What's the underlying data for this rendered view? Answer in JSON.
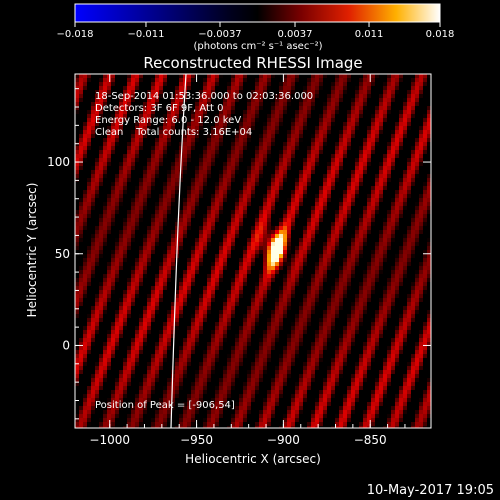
{
  "chart_data": {
    "type": "heatmap",
    "title": "Reconstructed RHESSI Image",
    "xlabel": "Heliocentric X (arcsec)",
    "ylabel": "Heliocentric Y (arcsec)",
    "xlim": [
      -1020,
      -815
    ],
    "ylim": [
      -45,
      148
    ],
    "x_ticks": [
      -1000,
      -950,
      -900,
      -850
    ],
    "x_tick_labels": [
      "−1000",
      "−950",
      "−900",
      "−850"
    ],
    "y_ticks": [
      0,
      50,
      100
    ],
    "y_tick_labels": [
      "0",
      "50",
      "100"
    ],
    "colorbar": {
      "min": -0.018,
      "max": 0.018,
      "ticks": [
        -0.018,
        -0.011,
        -0.0037,
        0.0037,
        0.011,
        0.018
      ],
      "tick_labels": [
        "−0.018",
        "−0.011",
        "−0.0037",
        "0.0037",
        "0.011",
        "0.018"
      ],
      "unit_label": "(photons cm⁻² s⁻¹ asec⁻²)"
    },
    "annotations": [
      "18-Sep-2014 01:53:36.000 to 02:03:36.000",
      "Detectors: 3F 6F 9F, Att 0",
      "Energy Range: 6.0 - 12.0 keV",
      "Clean    Total counts: 3.16E+04"
    ],
    "peak": {
      "x": -906,
      "y": 54
    },
    "peak_label": "Position of Peak = [-906,54]",
    "colormap": "blue-black-red-yellow-white"
  },
  "footer": {
    "date": "10-May-2017 19:05"
  }
}
